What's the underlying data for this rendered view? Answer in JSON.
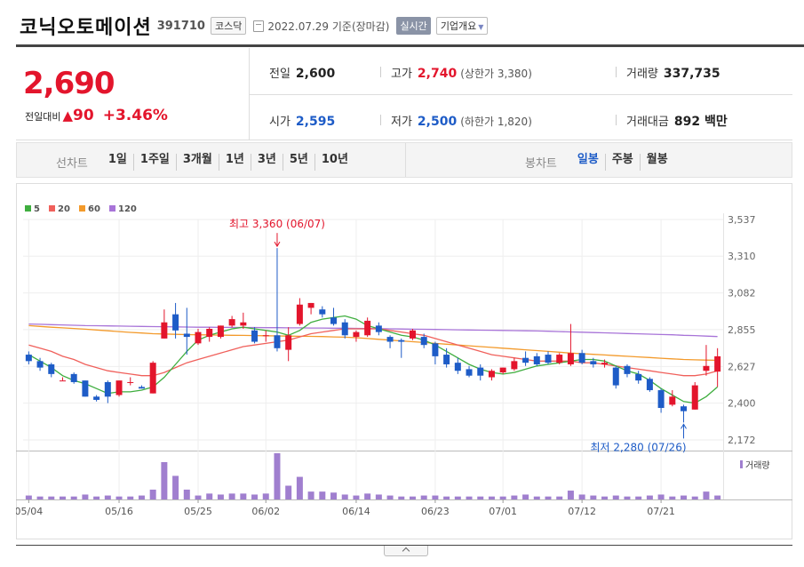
{
  "header": {
    "title": "코닉오토메이션",
    "code": "391710",
    "market": "코스닥",
    "date": "2022.07.29 기준(장마감)",
    "realtime_label": "실시간",
    "overview_label": "기업개요"
  },
  "quote": {
    "price": "2,690",
    "change_label": "전일대비",
    "change_arrow": "▲",
    "change_value": "90",
    "change_pct": "+3.46%",
    "prev_close_label": "전일",
    "prev_close": "2,600",
    "open_label": "시가",
    "open": "2,595",
    "high_label": "고가",
    "high": "2,740",
    "upper_limit": "(상한가 3,380)",
    "low_label": "저가",
    "low": "2,500",
    "lower_limit": "(하한가 1,820)",
    "volume_label": "거래량",
    "volume": "337,735",
    "amount_label": "거래대금",
    "amount": "892 백만"
  },
  "tabs": {
    "line_chart_label": "선차트",
    "line_periods": [
      "1일",
      "1주일",
      "3개월",
      "1년",
      "3년",
      "5년",
      "10년"
    ],
    "candle_chart_label": "봉차트",
    "candle_periods": [
      "일봉",
      "주봉",
      "월봉"
    ],
    "candle_active": "일봉"
  },
  "colors": {
    "up": "#e3152c",
    "down": "#1e5cc7",
    "ma5": "#3fae3f",
    "ma20": "#f0605b",
    "ma60": "#f39a2b",
    "ma120": "#a874d8",
    "volume": "#a07fcf"
  },
  "chart_data": {
    "type": "candlestick",
    "legend": [
      {
        "name": "5",
        "color": "#3fae3f"
      },
      {
        "name": "20",
        "color": "#f0605b"
      },
      {
        "name": "60",
        "color": "#f39a2b"
      },
      {
        "name": "120",
        "color": "#a874d8"
      }
    ],
    "y_ticks": [
      "3,537",
      "3,310",
      "3,082",
      "2,855",
      "2,627",
      "2,400",
      "2,172"
    ],
    "ylim": [
      2172,
      3537
    ],
    "x_ticks": [
      {
        "label": "05/04",
        "index": 0
      },
      {
        "label": "05/16",
        "index": 8
      },
      {
        "label": "05/25",
        "index": 15
      },
      {
        "label": "06/02",
        "index": 21
      },
      {
        "label": "06/14",
        "index": 29
      },
      {
        "label": "06/23",
        "index": 36
      },
      {
        "label": "07/01",
        "index": 42
      },
      {
        "label": "07/12",
        "index": 49
      },
      {
        "label": "07/21",
        "index": 56
      }
    ],
    "max_annotation": "최고 3,360 (06/07)",
    "max_index": 22,
    "max_value": 3360,
    "min_annotation": "최저 2,280 (07/26)",
    "min_index": 58,
    "min_value": 2280,
    "volume_label": "거래량",
    "candles": [
      {
        "o": 2700,
        "h": 2720,
        "l": 2640,
        "c": 2660
      },
      {
        "o": 2660,
        "h": 2680,
        "l": 2600,
        "c": 2620
      },
      {
        "o": 2640,
        "h": 2650,
        "l": 2560,
        "c": 2580
      },
      {
        "o": 2540,
        "h": 2560,
        "l": 2540,
        "c": 2540
      },
      {
        "o": 2580,
        "h": 2590,
        "l": 2520,
        "c": 2530
      },
      {
        "o": 2540,
        "h": 2540,
        "l": 2440,
        "c": 2440
      },
      {
        "o": 2440,
        "h": 2450,
        "l": 2410,
        "c": 2420
      },
      {
        "o": 2530,
        "h": 2540,
        "l": 2400,
        "c": 2440
      },
      {
        "o": 2450,
        "h": 2540,
        "l": 2440,
        "c": 2540
      },
      {
        "o": 2530,
        "h": 2560,
        "l": 2510,
        "c": 2530
      },
      {
        "o": 2500,
        "h": 2510,
        "l": 2490,
        "c": 2490
      },
      {
        "o": 2460,
        "h": 2660,
        "l": 2460,
        "c": 2650
      },
      {
        "o": 2800,
        "h": 2980,
        "l": 2800,
        "c": 2900
      },
      {
        "o": 2950,
        "h": 3020,
        "l": 2800,
        "c": 2850
      },
      {
        "o": 2830,
        "h": 2990,
        "l": 2700,
        "c": 2810
      },
      {
        "o": 2770,
        "h": 2860,
        "l": 2760,
        "c": 2840
      },
      {
        "o": 2810,
        "h": 2870,
        "l": 2780,
        "c": 2860
      },
      {
        "o": 2810,
        "h": 2880,
        "l": 2800,
        "c": 2880
      },
      {
        "o": 2880,
        "h": 2940,
        "l": 2870,
        "c": 2920
      },
      {
        "o": 2880,
        "h": 2960,
        "l": 2860,
        "c": 2900
      },
      {
        "o": 2850,
        "h": 2870,
        "l": 2770,
        "c": 2780
      },
      {
        "o": 2820,
        "h": 2850,
        "l": 2780,
        "c": 2820
      },
      {
        "o": 2820,
        "h": 3360,
        "l": 2720,
        "c": 2740
      },
      {
        "o": 2730,
        "h": 2870,
        "l": 2660,
        "c": 2820
      },
      {
        "o": 2890,
        "h": 3050,
        "l": 2880,
        "c": 3010
      },
      {
        "o": 2990,
        "h": 3020,
        "l": 2950,
        "c": 3020
      },
      {
        "o": 2980,
        "h": 3000,
        "l": 2930,
        "c": 2950
      },
      {
        "o": 2930,
        "h": 2990,
        "l": 2880,
        "c": 2890
      },
      {
        "o": 2900,
        "h": 2920,
        "l": 2800,
        "c": 2820
      },
      {
        "o": 2810,
        "h": 2850,
        "l": 2780,
        "c": 2840
      },
      {
        "o": 2820,
        "h": 2930,
        "l": 2810,
        "c": 2910
      },
      {
        "o": 2880,
        "h": 2900,
        "l": 2820,
        "c": 2840
      },
      {
        "o": 2810,
        "h": 2820,
        "l": 2740,
        "c": 2780
      },
      {
        "o": 2790,
        "h": 2800,
        "l": 2680,
        "c": 2780
      },
      {
        "o": 2800,
        "h": 2860,
        "l": 2790,
        "c": 2850
      },
      {
        "o": 2810,
        "h": 2830,
        "l": 2740,
        "c": 2760
      },
      {
        "o": 2770,
        "h": 2780,
        "l": 2640,
        "c": 2690
      },
      {
        "o": 2700,
        "h": 2740,
        "l": 2620,
        "c": 2640
      },
      {
        "o": 2650,
        "h": 2680,
        "l": 2580,
        "c": 2600
      },
      {
        "o": 2610,
        "h": 2630,
        "l": 2560,
        "c": 2570
      },
      {
        "o": 2620,
        "h": 2640,
        "l": 2540,
        "c": 2570
      },
      {
        "o": 2560,
        "h": 2610,
        "l": 2540,
        "c": 2600
      },
      {
        "o": 2590,
        "h": 2620,
        "l": 2580,
        "c": 2620
      },
      {
        "o": 2610,
        "h": 2680,
        "l": 2600,
        "c": 2660
      },
      {
        "o": 2680,
        "h": 2720,
        "l": 2630,
        "c": 2650
      },
      {
        "o": 2690,
        "h": 2710,
        "l": 2630,
        "c": 2640
      },
      {
        "o": 2700,
        "h": 2720,
        "l": 2640,
        "c": 2650
      },
      {
        "o": 2650,
        "h": 2710,
        "l": 2640,
        "c": 2700
      },
      {
        "o": 2640,
        "h": 2890,
        "l": 2630,
        "c": 2710
      },
      {
        "o": 2710,
        "h": 2730,
        "l": 2640,
        "c": 2650
      },
      {
        "o": 2660,
        "h": 2680,
        "l": 2620,
        "c": 2640
      },
      {
        "o": 2640,
        "h": 2670,
        "l": 2620,
        "c": 2650
      },
      {
        "o": 2620,
        "h": 2630,
        "l": 2490,
        "c": 2510
      },
      {
        "o": 2630,
        "h": 2640,
        "l": 2560,
        "c": 2580
      },
      {
        "o": 2580,
        "h": 2600,
        "l": 2520,
        "c": 2540
      },
      {
        "o": 2550,
        "h": 2560,
        "l": 2470,
        "c": 2480
      },
      {
        "o": 2480,
        "h": 2490,
        "l": 2340,
        "c": 2370
      },
      {
        "o": 2390,
        "h": 2480,
        "l": 2380,
        "c": 2440
      },
      {
        "o": 2380,
        "h": 2390,
        "l": 2280,
        "c": 2350
      },
      {
        "o": 2360,
        "h": 2530,
        "l": 2360,
        "c": 2510
      },
      {
        "o": 2600,
        "h": 2760,
        "l": 2570,
        "c": 2630
      },
      {
        "o": 2595,
        "h": 2740,
        "l": 2500,
        "c": 2690
      }
    ],
    "volumes": [
      4,
      3,
      3,
      3,
      3,
      5,
      3,
      4,
      3,
      3,
      4,
      10,
      38,
      24,
      10,
      4,
      6,
      5,
      6,
      6,
      5,
      6,
      47,
      14,
      23,
      8,
      8,
      7,
      5,
      4,
      6,
      5,
      4,
      3,
      3,
      4,
      4,
      3,
      3,
      3,
      3,
      3,
      3,
      4,
      5,
      3,
      3,
      3,
      9,
      5,
      4,
      3,
      4,
      3,
      3,
      4,
      5,
      3,
      4,
      3,
      8,
      4
    ],
    "ma5": [
      2700,
      2660,
      2620,
      2570,
      2540,
      2520,
      2490,
      2460,
      2470,
      2470,
      2480,
      2500,
      2560,
      2640,
      2720,
      2790,
      2820,
      2840,
      2860,
      2870,
      2860,
      2850,
      2840,
      2820,
      2850,
      2900,
      2920,
      2930,
      2940,
      2920,
      2880,
      2860,
      2840,
      2820,
      2810,
      2790,
      2760,
      2720,
      2680,
      2640,
      2610,
      2590,
      2580,
      2590,
      2610,
      2630,
      2640,
      2650,
      2660,
      2670,
      2670,
      2660,
      2630,
      2600,
      2580,
      2540,
      2490,
      2450,
      2410,
      2400,
      2440,
      2500
    ],
    "ma20": [
      2760,
      2740,
      2720,
      2690,
      2670,
      2640,
      2620,
      2600,
      2590,
      2580,
      2570,
      2570,
      2590,
      2620,
      2650,
      2670,
      2690,
      2710,
      2730,
      2750,
      2760,
      2770,
      2780,
      2790,
      2810,
      2830,
      2840,
      2850,
      2860,
      2860,
      2860,
      2860,
      2850,
      2840,
      2830,
      2820,
      2800,
      2780,
      2760,
      2740,
      2720,
      2700,
      2690,
      2680,
      2670,
      2660,
      2660,
      2660,
      2660,
      2650,
      2650,
      2640,
      2630,
      2620,
      2610,
      2600,
      2590,
      2580,
      2570,
      2570,
      2580,
      2600
    ],
    "ma60": [
      2880,
      2875,
      2870,
      2866,
      2862,
      2858,
      2853,
      2848,
      2843,
      2838,
      2834,
      2830,
      2828,
      2826,
      2824,
      2823,
      2822,
      2821,
      2820,
      2819,
      2818,
      2817,
      2816,
      2815,
      2814,
      2813,
      2812,
      2810,
      2808,
      2805,
      2800,
      2795,
      2790,
      2785,
      2780,
      2775,
      2770,
      2765,
      2760,
      2755,
      2750,
      2745,
      2740,
      2735,
      2730,
      2725,
      2720,
      2715,
      2710,
      2706,
      2702,
      2698,
      2694,
      2690,
      2686,
      2682,
      2678,
      2674,
      2670,
      2668,
      2666,
      2665
    ],
    "ma120": [
      2890,
      2888,
      2886,
      2884,
      2882,
      2880,
      2879,
      2878,
      2877,
      2876,
      2875,
      2874,
      2873,
      2872,
      2871,
      2870,
      2870,
      2869,
      2869,
      2868,
      2868,
      2867,
      2867,
      2866,
      2866,
      2865,
      2865,
      2864,
      2864,
      2863,
      2862,
      2861,
      2860,
      2859,
      2858,
      2857,
      2856,
      2855,
      2854,
      2853,
      2852,
      2851,
      2850,
      2849,
      2848,
      2847,
      2845,
      2843,
      2841,
      2839,
      2837,
      2835,
      2833,
      2831,
      2829,
      2827,
      2825,
      2823,
      2820,
      2818,
      2815,
      2812
    ]
  }
}
